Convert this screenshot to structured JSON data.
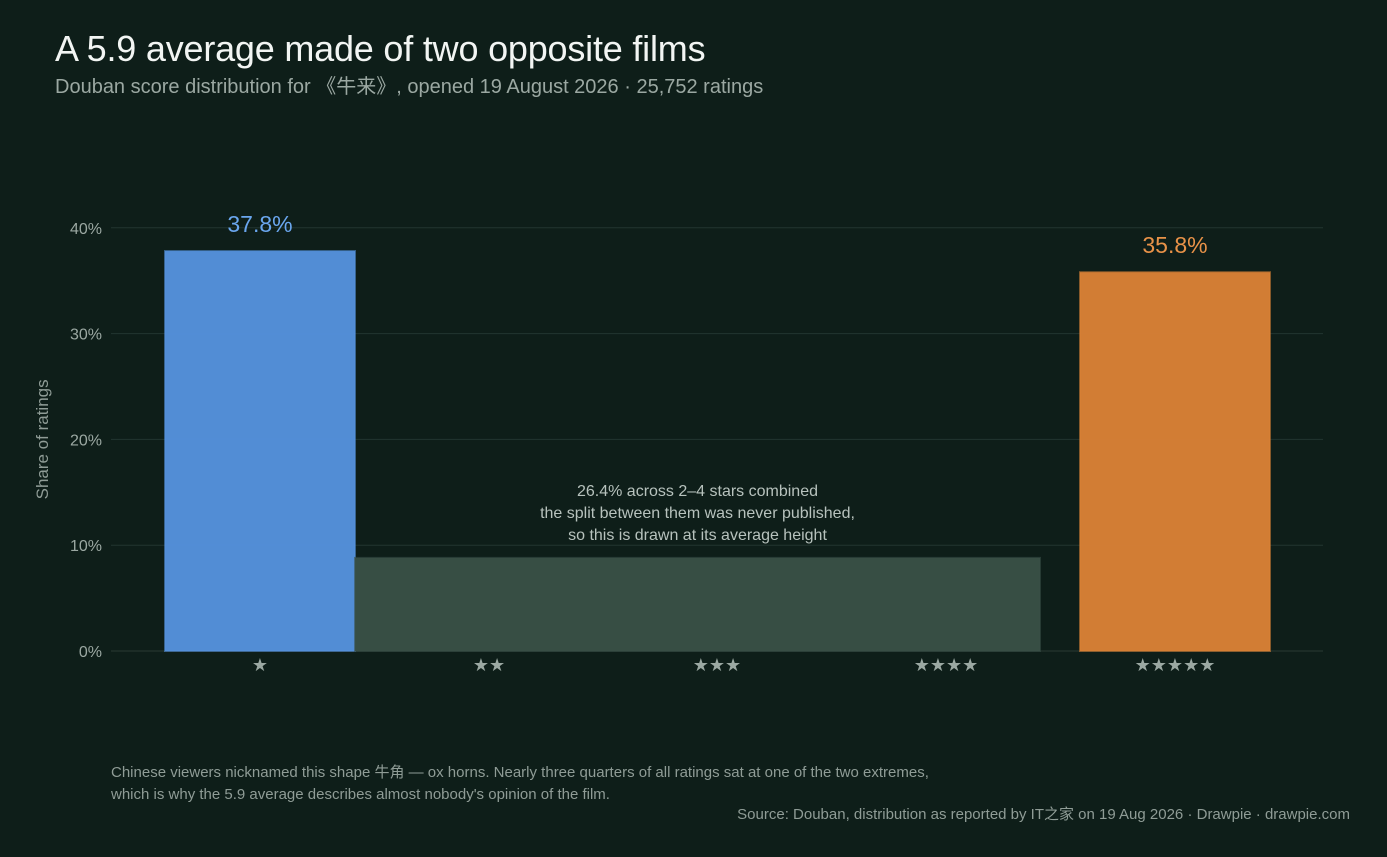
{
  "header": {
    "title": "A 5.9 average made of two opposite films",
    "subtitle": "Douban score distribution for 《牛来》, opened 19 August 2026 · 25,752 ratings"
  },
  "chart_data": {
    "type": "bar",
    "ylabel": "Share of ratings",
    "ylim": [
      0,
      40
    ],
    "y_ticks": [
      0,
      10,
      20,
      30,
      40
    ],
    "y_tick_labels": [
      "0%",
      "10%",
      "20%",
      "30%",
      "40%"
    ],
    "grid": true,
    "categories": [
      "★",
      "★★",
      "★★★",
      "★★★★",
      "★★★★★"
    ],
    "bars": [
      {
        "categories": [
          0
        ],
        "value": 37.8,
        "label": "37.8%",
        "color": "#5591dc",
        "label_color": "#6aa6ee"
      },
      {
        "categories": [
          1,
          2,
          3
        ],
        "value": 8.8,
        "label": "",
        "color": "#394f46",
        "label_color": ""
      },
      {
        "categories": [
          4
        ],
        "value": 35.8,
        "label": "35.8%",
        "color": "#d98036",
        "label_color": "#e89248"
      }
    ],
    "annotation": {
      "lines": [
        "26.4% across 2–4 stars combined",
        "the split between them was never published,",
        "so this is drawn at its average height"
      ]
    }
  },
  "footnote": {
    "lines": [
      "Chinese viewers nicknamed this shape 牛角 — ox horns. Nearly three quarters of all ratings sat at one of the two extremes,",
      "which is why the 5.9 average describes almost nobody's opinion of the film."
    ]
  },
  "source": "Source: Douban, distribution as reported by IT之家 on 19 Aug 2026  ·  Drawpie · drawpie.com"
}
